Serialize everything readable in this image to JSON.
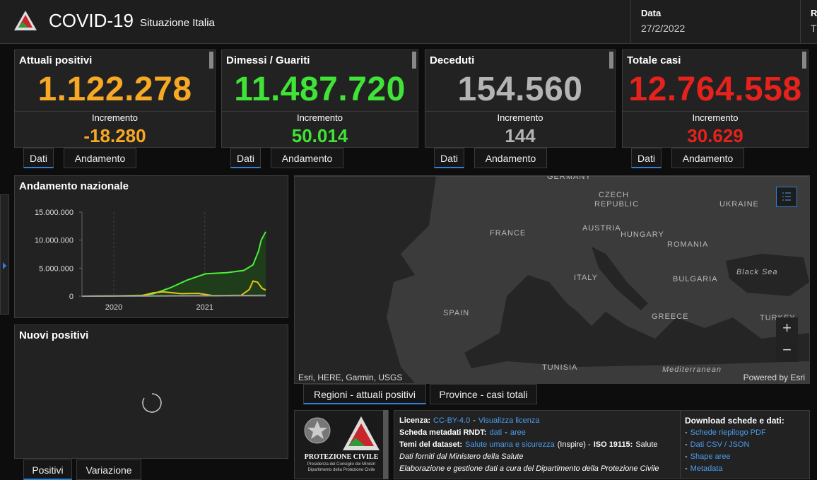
{
  "header": {
    "title": "COVID-19",
    "subtitle": "Situazione Italia",
    "date_label": "Data",
    "date_value": "27/2/2022",
    "cut_label": "R",
    "cut_value": "T"
  },
  "cards": [
    {
      "title": "Attuali positivi",
      "value": "1.122.278",
      "increment_label": "Incremento",
      "increment": "-18.280",
      "color": "#f7a824",
      "tabs": [
        "Dati",
        "Andamento"
      ]
    },
    {
      "title": "Dimessi / Guariti",
      "value": "11.487.720",
      "increment_label": "Incremento",
      "increment": "50.014",
      "color": "#3fe436",
      "tabs": [
        "Dati",
        "Andamento"
      ]
    },
    {
      "title": "Deceduti",
      "value": "154.560",
      "increment_label": "Incremento",
      "increment": "144",
      "color": "#b4b4b4",
      "tabs": [
        "Dati",
        "Andamento"
      ]
    },
    {
      "title": "Totale casi",
      "value": "12.764.558",
      "increment_label": "Incremento",
      "increment": "30.629",
      "color": "#e5221c",
      "tabs": [
        "Dati",
        "Andamento"
      ]
    }
  ],
  "chart": {
    "type": "line",
    "title": "Andamento nazionale",
    "xlim": [
      2019.65,
      2021.67
    ],
    "xticks": [
      2020,
      2021
    ],
    "ylim": [
      0,
      15000000
    ],
    "yticks": [
      0,
      {
        "value": 5000000,
        "label": "5.000.000"
      },
      {
        "value": 10000000,
        "label": "10.000.000"
      },
      {
        "value": 15000000,
        "label": "15.000.000"
      }
    ],
    "grid": true,
    "series": [
      {
        "color": "#4cf03a",
        "area": true,
        "x": [
          2019.65,
          2020,
          2020.31,
          2020.43,
          2020.62,
          2020.81,
          2021.01,
          2021.24,
          2021.43,
          2021.53,
          2021.59,
          2021.62,
          2021.67
        ],
        "values": [
          0,
          50000,
          150000,
          400000,
          1500000,
          2900000,
          4000000,
          4200000,
          4600000,
          5600000,
          8000000,
          10000000,
          11500000
        ]
      },
      {
        "color": "#e8c11c",
        "area": false,
        "x": [
          2019.65,
          2020.31,
          2020.43,
          2020.54,
          2020.74,
          2020.93,
          2021.09,
          2021.4,
          2021.49,
          2021.53,
          2021.58,
          2021.63,
          2021.67
        ],
        "values": [
          0,
          100000,
          600000,
          800000,
          450000,
          500000,
          100000,
          150000,
          1200000,
          2700000,
          2500000,
          1400000,
          1100000
        ]
      },
      {
        "color": "#9a9a9a",
        "area": false,
        "x": [
          2019.65,
          2020.3,
          2021,
          2021.67
        ],
        "values": [
          0,
          35000,
          75000,
          150000
        ]
      }
    ]
  },
  "new_positives": {
    "title": "Nuovi positivi",
    "tabs": [
      "Positivi",
      "Variazione"
    ]
  },
  "map": {
    "labels": [
      "GERMANY",
      "CZECH",
      "REPUBLIC",
      "UKRAINE",
      "FRANCE",
      "AUSTRIA",
      "HUNGARY",
      "ROMANIA",
      "ITALY",
      "Black Sea",
      "BULGARIA",
      "SPAIN",
      "GREECE",
      "TURKEY",
      "TUNISIA",
      "Mediterranean"
    ],
    "attribution": "Esri, HERE, Garmin, USGS",
    "powered": "Powered by Esri",
    "tabs": [
      "Regioni - attuali positivi",
      "Province - casi totali"
    ]
  },
  "footer": {
    "logo": [
      "PROTEZIONE CIVILE",
      "Presidenza del Consiglio dei Ministri",
      "Dipartimento della Protezione Civile"
    ],
    "lines": [
      [
        {
          "text": "Licenza:",
          "style": "bold"
        },
        {
          "text": "CC-BY-4.0",
          "style": "link"
        },
        {
          "text": "-",
          "style": "plain"
        },
        {
          "text": "Visualizza licenza",
          "style": "link"
        }
      ],
      [
        {
          "text": "Scheda metadati RNDT:",
          "style": "bold"
        },
        {
          "text": "dati",
          "style": "link"
        },
        {
          "text": "-",
          "style": "plain"
        },
        {
          "text": "aree",
          "style": "link"
        }
      ],
      [
        {
          "text": "Temi del dataset:",
          "style": "bold"
        },
        {
          "text": "Salute umana e sicurezza",
          "style": "link"
        },
        {
          "text": "(Inspire) -",
          "style": "plain"
        },
        {
          "text": "ISO 19115:",
          "style": "bold"
        },
        {
          "text": "Salute",
          "style": "plain"
        }
      ],
      [
        {
          "text": "Dati forniti dal Ministero della Salute",
          "style": "italic"
        }
      ],
      [
        {
          "text": "Elaborazione e gestione dati a cura del Dipartimento della Protezione Civile",
          "style": "italic"
        }
      ]
    ],
    "download_title": "Download schede e dati:",
    "downloads": [
      [
        {
          "text": "-",
          "style": "plain"
        },
        {
          "text": "Schede riepilogo PDF",
          "style": "link"
        }
      ],
      [
        {
          "text": "-",
          "style": "plain"
        },
        {
          "text": "Dati CSV / JSON",
          "style": "link"
        }
      ],
      [
        {
          "text": "-",
          "style": "plain"
        },
        {
          "text": "Shape aree",
          "style": "link"
        }
      ],
      [
        {
          "text": "-",
          "style": "plain"
        },
        {
          "text": "Metadata",
          "style": "link"
        }
      ]
    ]
  }
}
